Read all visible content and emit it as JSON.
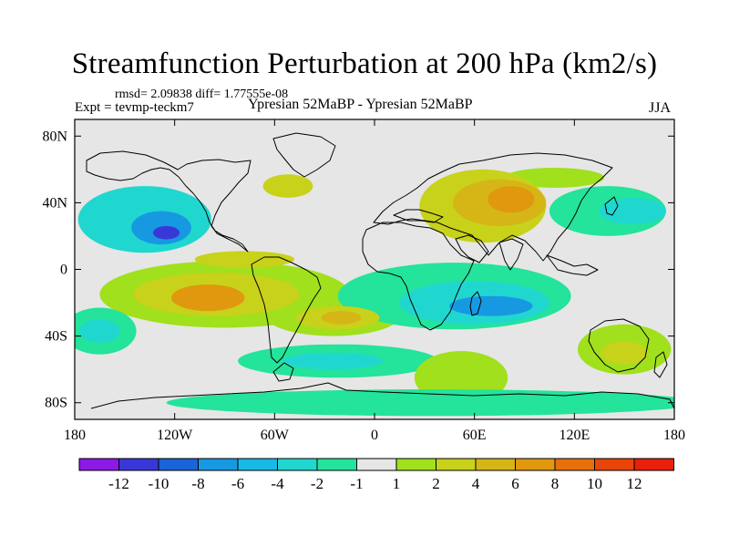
{
  "chart_data": {
    "type": "heatmap",
    "title": "Streamfunction Perturbation at 200 hPa (km2/s)",
    "stats": "rmsd= 2.09838 diff= 1.77555e-08",
    "experiment": "Expt = tevmp-teckm7",
    "comparison": "Ypresian  52MaBP - Ypresian  52MaBP",
    "season": "JJA",
    "x_range": [
      -180,
      180
    ],
    "y_range": [
      -90,
      90
    ],
    "x_ticks": [
      {
        "value": -180,
        "label": "180"
      },
      {
        "value": -120,
        "label": "120W"
      },
      {
        "value": -60,
        "label": "60W"
      },
      {
        "value": 0,
        "label": "0"
      },
      {
        "value": 60,
        "label": "60E"
      },
      {
        "value": 120,
        "label": "120E"
      },
      {
        "value": 180,
        "label": "180"
      }
    ],
    "y_ticks": [
      {
        "value": 80,
        "label": "80N"
      },
      {
        "value": 40,
        "label": "40N"
      },
      {
        "value": 0,
        "label": "0"
      },
      {
        "value": -40,
        "label": "40S"
      },
      {
        "value": -80,
        "label": "80S"
      }
    ],
    "colorbar": {
      "colors": [
        "#8b1ae6",
        "#3a37d8",
        "#1b63d9",
        "#1799e2",
        "#18b9e3",
        "#20d7d0",
        "#24e39b",
        "#e6e6e6",
        "#a0e01c",
        "#c8d21a",
        "#d6b616",
        "#e0980f",
        "#e6700a",
        "#e9450a",
        "#e8200c"
      ],
      "labels": [
        {
          "after_box": 1,
          "text": "-12"
        },
        {
          "after_box": 2,
          "text": "-10"
        },
        {
          "after_box": 3,
          "text": "-8"
        },
        {
          "after_box": 4,
          "text": "-6"
        },
        {
          "after_box": 5,
          "text": "-4"
        },
        {
          "after_box": 6,
          "text": "-2"
        },
        {
          "after_box": 7,
          "text": "-1"
        },
        {
          "after_box": 8,
          "text": "1"
        },
        {
          "after_box": 9,
          "text": "2"
        },
        {
          "after_box": 10,
          "text": "4"
        },
        {
          "after_box": 11,
          "text": "6"
        },
        {
          "after_box": 12,
          "text": "8"
        },
        {
          "after_box": 13,
          "text": "10"
        },
        {
          "after_box": 14,
          "text": "12"
        }
      ]
    },
    "anomalies": [
      {
        "lon": 65,
        "lat": 38,
        "rx": 38,
        "ry": 22,
        "level": 2
      },
      {
        "lon": 75,
        "lat": 40,
        "rx": 28,
        "ry": 14,
        "level": 3
      },
      {
        "lon": 82,
        "lat": 42,
        "rx": 14,
        "ry": 8,
        "level": 4
      },
      {
        "lon": -138,
        "lat": 30,
        "rx": 40,
        "ry": 20,
        "level": -2
      },
      {
        "lon": -128,
        "lat": 25,
        "rx": 18,
        "ry": 10,
        "level": -4
      },
      {
        "lon": -125,
        "lat": 22,
        "rx": 8,
        "ry": 4,
        "level": -6
      },
      {
        "lon": -90,
        "lat": -15,
        "rx": 75,
        "ry": 20,
        "level": 1
      },
      {
        "lon": -95,
        "lat": -15,
        "rx": 50,
        "ry": 13,
        "level": 2
      },
      {
        "lon": -100,
        "lat": -17,
        "rx": 22,
        "ry": 8,
        "level": 4
      },
      {
        "lon": -25,
        "lat": -28,
        "rx": 40,
        "ry": 12,
        "level": 1
      },
      {
        "lon": -22,
        "lat": -29,
        "rx": 25,
        "ry": 7,
        "level": 2
      },
      {
        "lon": -20,
        "lat": -29,
        "rx": 12,
        "ry": 4,
        "level": 3
      },
      {
        "lon": 48,
        "lat": -16,
        "rx": 70,
        "ry": 20,
        "level": -1
      },
      {
        "lon": 60,
        "lat": -20,
        "rx": 45,
        "ry": 13,
        "level": -2
      },
      {
        "lon": 70,
        "lat": -22,
        "rx": 25,
        "ry": 6,
        "level": -4
      },
      {
        "lon": -22,
        "lat": -55,
        "rx": 60,
        "ry": 10,
        "level": -1
      },
      {
        "lon": -25,
        "lat": -55,
        "rx": 30,
        "ry": 5,
        "level": -2
      },
      {
        "lon": 150,
        "lat": -48,
        "rx": 28,
        "ry": 15,
        "level": 1
      },
      {
        "lon": 150,
        "lat": -50,
        "rx": 14,
        "ry": 7,
        "level": 2
      },
      {
        "lon": 140,
        "lat": 35,
        "rx": 35,
        "ry": 15,
        "level": -1
      },
      {
        "lon": 155,
        "lat": 35,
        "rx": 20,
        "ry": 8,
        "level": -2
      },
      {
        "lon": -165,
        "lat": -37,
        "rx": 22,
        "ry": 14,
        "level": -1
      },
      {
        "lon": -165,
        "lat": -37,
        "rx": 12,
        "ry": 7,
        "level": -2
      },
      {
        "lon": 52,
        "lat": -65,
        "rx": 28,
        "ry": 16,
        "level": 1
      },
      {
        "lon": 108,
        "lat": 55,
        "rx": 30,
        "ry": 6,
        "level": 1
      },
      {
        "lon": -52,
        "lat": 50,
        "rx": 15,
        "ry": 7,
        "level": 2
      },
      {
        "lon": -78,
        "lat": 6,
        "rx": 30,
        "ry": 5,
        "level": 2
      },
      {
        "lon": 35,
        "lat": -80,
        "rx": 160,
        "ry": 8,
        "level": -1
      }
    ]
  }
}
